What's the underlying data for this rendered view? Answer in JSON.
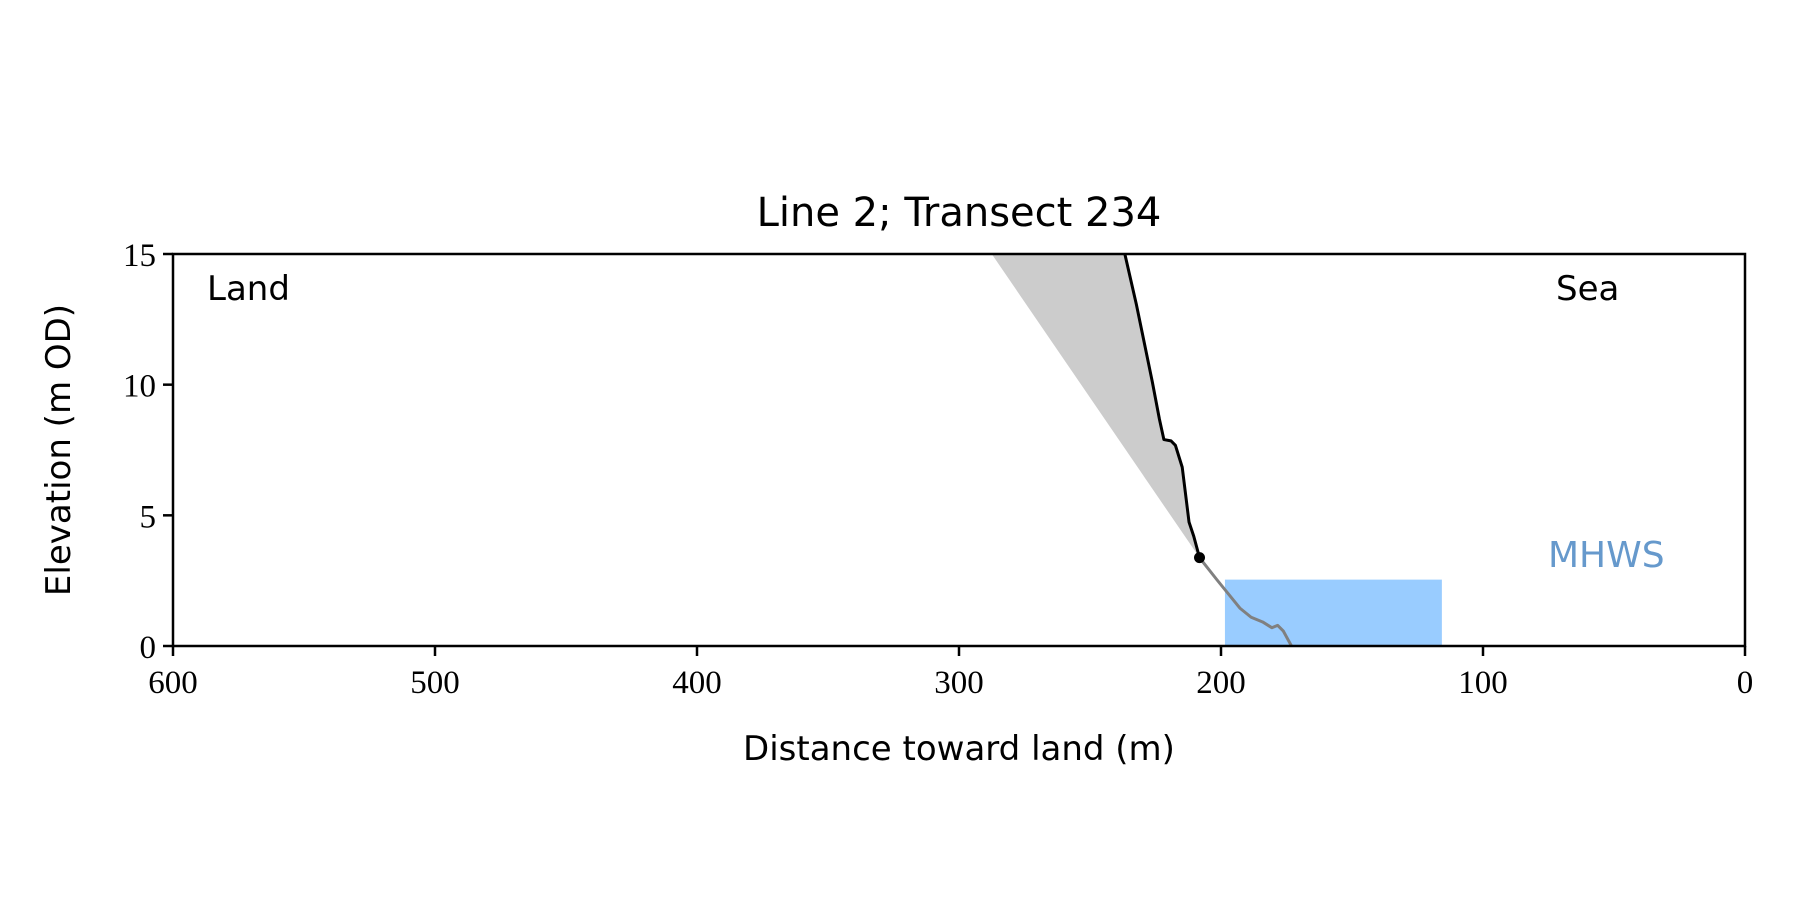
{
  "chart_data": {
    "type": "profile",
    "title": "Line 2; Transect 234",
    "x_label": "Distance toward land (m)",
    "y_label": "Elevation (m OD)",
    "annotations": {
      "land": "Land",
      "sea": "Sea",
      "mhws": "MHWS"
    },
    "xlim": [
      600,
      0
    ],
    "xticks": [
      600,
      500,
      400,
      300,
      200,
      100,
      0
    ],
    "ylim": [
      0,
      15
    ],
    "yticks": [
      0,
      5,
      10,
      15
    ],
    "cliff": {
      "color": "#000000",
      "x": [
        236.7,
        232.3,
        226.2,
        223.5,
        221.8,
        219.1,
        217.4,
        214.8,
        212.2,
        210.4,
        208.2
      ],
      "values": [
        15,
        13.07,
        10.1,
        8.68,
        7.9,
        7.85,
        7.68,
        6.84,
        4.74,
        4.2,
        3.38
      ]
    },
    "foreshore": {
      "color": "#808080",
      "x": [
        208.2,
        201.6,
        192.8,
        188.5,
        184.1,
        180.6,
        178.4,
        176.2,
        173.1
      ],
      "values": [
        3.38,
        2.54,
        1.45,
        1.1,
        0.92,
        0.7,
        0.79,
        0.57,
        0
      ]
    },
    "envelope": {
      "color": "#cccccc",
      "x": [
        287.5,
        208.2
      ],
      "values": [
        15,
        3.38
      ]
    },
    "mhws": {
      "color": "#99ccff",
      "label_color": "#6699cc",
      "x": [
        198.5,
        115.7
      ],
      "values": [
        0,
        2.54
      ]
    },
    "point": {
      "color": "#000000",
      "x": 208.2,
      "y": 3.38
    }
  }
}
